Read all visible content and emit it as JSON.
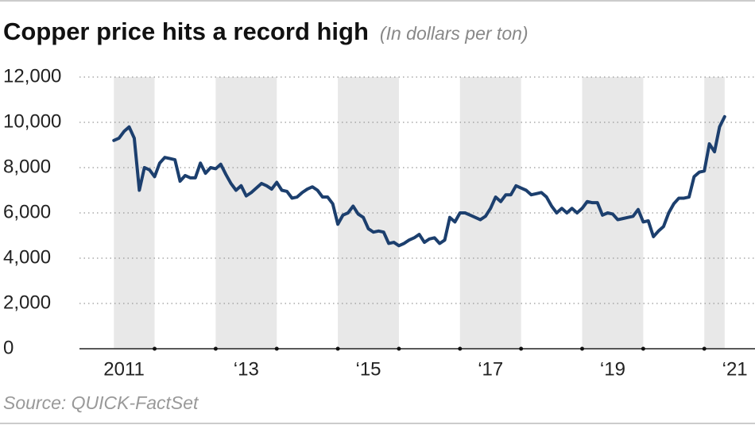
{
  "chart_data": {
    "type": "line",
    "title": "Copper price hits a record high",
    "subtitle": "(In dollars per ton)",
    "source": "Source: QUICK-FactSet",
    "xlim": [
      2010.77,
      2021.83
    ],
    "xticks": [
      {
        "value": 2011.5,
        "label": "2011"
      },
      {
        "value": 2013.5,
        "label": "‘13"
      },
      {
        "value": 2015.5,
        "label": "‘15"
      },
      {
        "value": 2017.5,
        "label": "‘17"
      },
      {
        "value": 2019.5,
        "label": "‘19"
      },
      {
        "value": 2021.5,
        "label": "‘21"
      }
    ],
    "year_marks": [
      2012,
      2013,
      2014,
      2015,
      2016,
      2017,
      2018,
      2019,
      2020,
      2021
    ],
    "shaded_spans": [
      [
        2011.333,
        2012
      ],
      [
        2013,
        2014
      ],
      [
        2015,
        2016
      ],
      [
        2017,
        2018
      ],
      [
        2019,
        2020
      ],
      [
        2021,
        2021.333
      ]
    ],
    "ylim": [
      0,
      12000
    ],
    "yticks": [
      0,
      {
        "value": 2000,
        "label": "2,000"
      },
      {
        "value": 4000,
        "label": "4,000"
      },
      {
        "value": 6000,
        "label": "6,000"
      },
      {
        "value": 8000,
        "label": "8,000"
      },
      {
        "value": 10000,
        "label": "10,000"
      },
      {
        "value": 12000,
        "label": "12,000"
      }
    ],
    "grid": true,
    "series": [
      {
        "color": "#1c3f6e",
        "x": [
          2011.333,
          2011.417,
          2011.5,
          2011.583,
          2011.667,
          2011.75,
          2011.833,
          2011.917,
          2012,
          2012.083,
          2012.167,
          2012.25,
          2012.333,
          2012.417,
          2012.5,
          2012.583,
          2012.667,
          2012.75,
          2012.833,
          2012.917,
          2013,
          2013.083,
          2013.167,
          2013.25,
          2013.333,
          2013.417,
          2013.5,
          2013.583,
          2013.667,
          2013.75,
          2013.833,
          2013.917,
          2014,
          2014.083,
          2014.167,
          2014.25,
          2014.333,
          2014.417,
          2014.5,
          2014.583,
          2014.667,
          2014.75,
          2014.833,
          2014.917,
          2015,
          2015.083,
          2015.167,
          2015.25,
          2015.333,
          2015.417,
          2015.5,
          2015.583,
          2015.667,
          2015.75,
          2015.833,
          2015.917,
          2016,
          2016.083,
          2016.167,
          2016.25,
          2016.333,
          2016.417,
          2016.5,
          2016.583,
          2016.667,
          2016.75,
          2016.833,
          2016.917,
          2017,
          2017.083,
          2017.167,
          2017.25,
          2017.333,
          2017.417,
          2017.5,
          2017.583,
          2017.667,
          2017.75,
          2017.833,
          2017.917,
          2018,
          2018.083,
          2018.167,
          2018.25,
          2018.333,
          2018.417,
          2018.5,
          2018.583,
          2018.667,
          2018.75,
          2018.833,
          2018.917,
          2019,
          2019.083,
          2019.167,
          2019.25,
          2019.333,
          2019.417,
          2019.5,
          2019.583,
          2019.667,
          2019.75,
          2019.833,
          2019.917,
          2020,
          2020.083,
          2020.167,
          2020.25,
          2020.333,
          2020.417,
          2020.5,
          2020.583,
          2020.667,
          2020.75,
          2020.833,
          2020.917,
          2021,
          2021.083,
          2021.167,
          2021.25,
          2021.333
        ],
        "values": [
          9200,
          9300,
          9600,
          9800,
          9300,
          7000,
          8000,
          7900,
          7600,
          8200,
          8450,
          8400,
          8350,
          7400,
          7650,
          7550,
          7550,
          8200,
          7750,
          8000,
          7950,
          8150,
          7700,
          7300,
          7000,
          7200,
          6750,
          6900,
          7100,
          7300,
          7200,
          7050,
          7350,
          7000,
          6950,
          6650,
          6700,
          6900,
          7050,
          7150,
          7000,
          6700,
          6700,
          6400,
          5500,
          5900,
          6000,
          6300,
          5950,
          5800,
          5300,
          5150,
          5200,
          5150,
          4650,
          4700,
          4550,
          4650,
          4800,
          4900,
          5050,
          4700,
          4850,
          4900,
          4650,
          4800,
          5800,
          5600,
          6000,
          6000,
          5900,
          5800,
          5700,
          5850,
          6200,
          6700,
          6500,
          6800,
          6800,
          7200,
          7100,
          7000,
          6800,
          6850,
          6900,
          6700,
          6300,
          6000,
          6200,
          6000,
          6200,
          6000,
          6200,
          6500,
          6450,
          6450,
          5900,
          6000,
          5950,
          5700,
          5750,
          5800,
          5850,
          6150,
          5600,
          5650,
          4950,
          5200,
          5400,
          6000,
          6400,
          6650,
          6650,
          6700,
          7600,
          7800,
          7850,
          9050,
          8700,
          9800,
          10250
        ]
      }
    ]
  }
}
